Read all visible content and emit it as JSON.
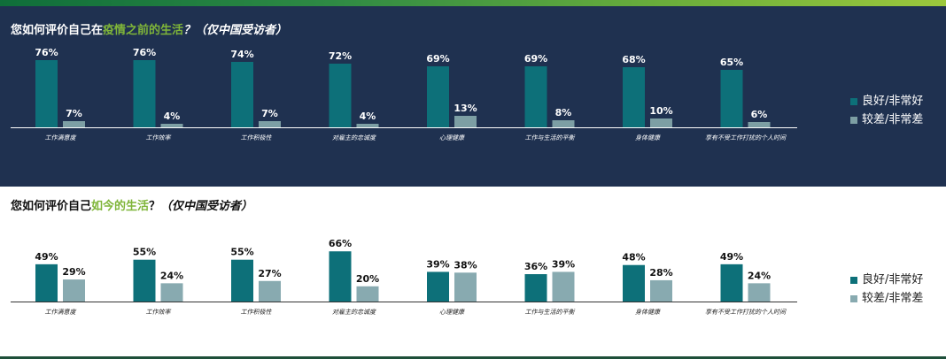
{
  "colors": {
    "good": "#0d7079",
    "bad_dark_bg": "#7d9fa4",
    "bad_light_bg": "#88aab0",
    "highlight": "#7fb539"
  },
  "chart_data": [
    {
      "type": "bar",
      "title_parts": [
        "您如何评价自己在",
        "疫情之前的生活",
        "？",
        "（仅中国受访者）"
      ],
      "categories": [
        "工作满意度",
        "工作效率",
        "工作积极性",
        "对雇主的忠诚度",
        "心理健康",
        "工作与生活的平衡",
        "身体健康",
        "享有不受工作打扰的个人时间"
      ],
      "series": [
        {
          "name": "良好/非常好",
          "values": [
            76,
            76,
            74,
            72,
            69,
            69,
            68,
            65
          ]
        },
        {
          "name": "较差/非常差",
          "values": [
            7,
            4,
            7,
            4,
            13,
            8,
            10,
            6
          ]
        }
      ],
      "value_suffix": "%",
      "legend_placement": "right",
      "grid": false
    },
    {
      "type": "bar",
      "title_parts": [
        "您如何评价自己",
        "如今的生活",
        "？",
        "（仅中国受访者）"
      ],
      "categories": [
        "工作满意度",
        "工作效率",
        "工作积极性",
        "对雇主的忠诚度",
        "心理健康",
        "工作与生活的平衡",
        "身体健康",
        "享有不受工作打扰的个人时间"
      ],
      "series": [
        {
          "name": "良好/非常好",
          "values": [
            49,
            55,
            55,
            66,
            39,
            36,
            48,
            49
          ]
        },
        {
          "name": "较差/非常差",
          "values": [
            29,
            24,
            27,
            20,
            38,
            39,
            28,
            24
          ]
        }
      ],
      "value_suffix": "%",
      "legend_placement": "right",
      "grid": false
    }
  ]
}
